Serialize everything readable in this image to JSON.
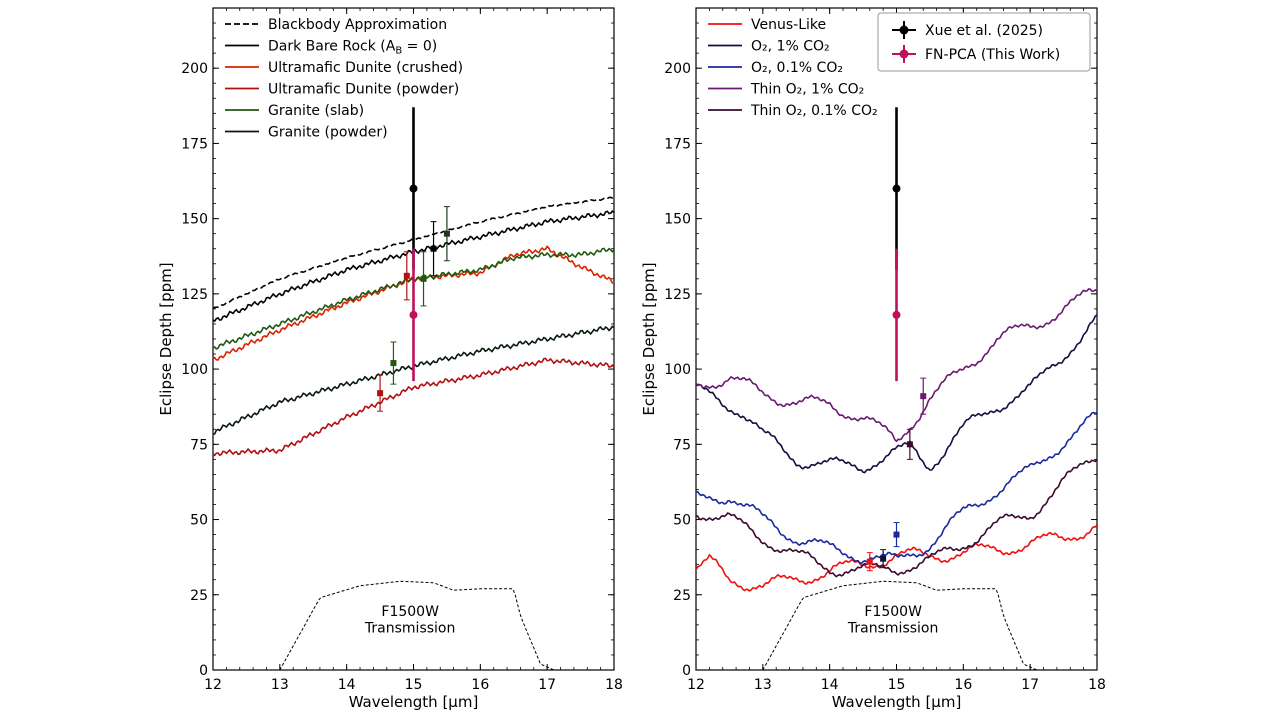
{
  "colors": {
    "black": "#000000",
    "red": "#ee1111",
    "darkred": "#b01010",
    "orange_red": "#dd2200",
    "green": "#1f5a10",
    "navy": "#101040",
    "blue": "#1a2aa0",
    "purple_dark": "#3a0a30",
    "purple": "#6a1a70",
    "magenta": "#b8125a",
    "crimson": "#c0105a"
  },
  "chart_data": [
    {
      "type": "line",
      "panel": "left",
      "xlabel": "Wavelength [μm]",
      "ylabel": "Eclipse Depth [ppm]",
      "xlim": [
        12,
        18
      ],
      "ylim": [
        0,
        220
      ],
      "xticks": [
        "12",
        "13",
        "14",
        "15",
        "16",
        "17",
        "18"
      ],
      "yticks": [
        "0",
        "25",
        "50",
        "75",
        "100",
        "125",
        "150",
        "175",
        "200"
      ],
      "legend_position": "top-left",
      "series": [
        {
          "name": "Blackbody Approximation",
          "color": "#000000",
          "dash": true,
          "x": [
            12,
            13,
            14,
            15,
            16,
            17,
            18
          ],
          "values": [
            120,
            130,
            137,
            143,
            149,
            154,
            157
          ]
        },
        {
          "name": "Dark Bare Rock (A_B = 0)",
          "color": "#000000",
          "dash": false,
          "x": [
            12,
            13,
            14,
            15,
            16,
            17,
            18
          ],
          "values": [
            116,
            125,
            133,
            139,
            144,
            149,
            152
          ]
        },
        {
          "name": "Ultramafic Dunite (crushed)",
          "color": "#dd2200",
          "dash": false,
          "x": [
            12,
            13,
            14,
            15,
            16,
            16.5,
            17,
            17.5,
            18
          ],
          "values": [
            103,
            113,
            122,
            130,
            132,
            138,
            140,
            134,
            129
          ]
        },
        {
          "name": "Ultramafic Dunite (powder)",
          "color": "#b01010",
          "dash": false,
          "x": [
            12,
            13,
            14,
            15,
            16,
            17,
            18
          ],
          "values": [
            72,
            73,
            84,
            94,
            98,
            103,
            101
          ]
        },
        {
          "name": "Granite (slab)",
          "color": "#1f5a10",
          "dash": false,
          "x": [
            12,
            13,
            14,
            15,
            16,
            16.5,
            17,
            17.5,
            18
          ],
          "values": [
            107,
            115,
            123,
            130,
            133,
            137,
            138,
            138,
            140
          ]
        },
        {
          "name": "Granite (powder)",
          "color": "#0a1a0a",
          "dash": false,
          "x": [
            12,
            13,
            14,
            15,
            16,
            17,
            18
          ],
          "values": [
            79,
            89,
            95,
            101,
            106,
            110,
            114
          ]
        }
      ],
      "points": [
        {
          "color": "#000000",
          "marker": "circle",
          "x": 15.0,
          "y": 160,
          "err": 27
        },
        {
          "color": "#c0105a",
          "marker": "circle",
          "x": 15.0,
          "y": 118,
          "err": 22
        },
        {
          "color": "#000000",
          "marker": "square",
          "x": 15.3,
          "y": 140,
          "err": 9
        },
        {
          "color": "#1a3a1a",
          "marker": "square",
          "x": 15.5,
          "y": 145,
          "err": 9
        },
        {
          "color": "#b01010",
          "marker": "square",
          "x": 14.9,
          "y": 131,
          "err": 8
        },
        {
          "color": "#1f5a10",
          "marker": "square",
          "x": 15.15,
          "y": 130,
          "err": 9
        },
        {
          "color": "#1f5a10",
          "marker": "square",
          "x": 14.7,
          "y": 102,
          "err": 7
        },
        {
          "color": "#b01010",
          "marker": "square",
          "x": 14.5,
          "y": 92,
          "err": 6
        }
      ],
      "filter": {
        "label_line1": "F1500W",
        "label_line2": "Transmission",
        "x": [
          13.0,
          13.3,
          13.6,
          14.2,
          14.8,
          15.3,
          15.6,
          16.0,
          16.5,
          16.6,
          16.9,
          17.1
        ],
        "values": [
          0,
          12,
          24,
          28,
          29.5,
          29,
          26.5,
          27,
          27,
          18,
          2,
          0
        ]
      }
    },
    {
      "type": "line",
      "panel": "right",
      "xlabel": "Wavelength [μm]",
      "ylabel": "Eclipse Depth [ppm]",
      "xlim": [
        12,
        18
      ],
      "ylim": [
        0,
        220
      ],
      "xticks": [
        "12",
        "13",
        "14",
        "15",
        "16",
        "17",
        "18"
      ],
      "yticks": [
        "0",
        "25",
        "50",
        "75",
        "100",
        "125",
        "150",
        "175",
        "200"
      ],
      "legend_position": "top-left",
      "series": [
        {
          "name": "Venus-Like",
          "color": "#ee1111",
          "dash": false,
          "x": [
            12,
            12.2,
            12.5,
            13,
            13.5,
            14,
            14.5,
            15,
            15.5,
            16,
            16.5,
            17,
            17.5,
            18
          ],
          "values": [
            33,
            36,
            30,
            28,
            30,
            33,
            35,
            38,
            38,
            39,
            40,
            42,
            44,
            48
          ]
        },
        {
          "name": "O₂, 1% CO₂",
          "color": "#101040",
          "dash": false,
          "x": [
            12,
            12.3,
            12.7,
            13,
            13.5,
            14,
            14.5,
            15,
            15.2,
            15.5,
            16,
            16.5,
            17,
            17.5,
            18
          ],
          "values": [
            93,
            90,
            86,
            78,
            70,
            68,
            68,
            72,
            74,
            68,
            80,
            88,
            93,
            105,
            116
          ]
        },
        {
          "name": "O₂, 0.1% CO₂",
          "color": "#1a2aa0",
          "dash": false,
          "x": [
            12,
            12.5,
            13,
            13.5,
            14,
            14.5,
            15,
            15.5,
            16,
            16.5,
            17,
            17.5,
            18
          ],
          "values": [
            57,
            58,
            50,
            44,
            40,
            38,
            36,
            42,
            52,
            60,
            66,
            76,
            84
          ]
        },
        {
          "name": "Thin O₂, 1% CO₂",
          "color": "#6a1a70",
          "dash": false,
          "x": [
            12,
            12.5,
            13,
            13.5,
            14,
            14.5,
            15,
            15.5,
            16,
            16.5,
            17,
            17.5,
            18
          ],
          "values": [
            95,
            97,
            92,
            89,
            88,
            84,
            76,
            90,
            100,
            110,
            114,
            120,
            126
          ]
        },
        {
          "name": "Thin O₂, 0.1% CO₂",
          "color": "#3a0a30",
          "dash": false,
          "x": [
            12,
            12.5,
            13,
            13.5,
            14,
            14.5,
            15,
            15.5,
            16,
            16.5,
            17,
            17.5,
            18
          ],
          "values": [
            53,
            50,
            44,
            38,
            34,
            33,
            34,
            36,
            42,
            48,
            52,
            62,
            72
          ]
        }
      ],
      "points": [
        {
          "color": "#000000",
          "marker": "circle",
          "x": 15.0,
          "y": 160,
          "err": 27
        },
        {
          "color": "#c0105a",
          "marker": "circle",
          "x": 15.0,
          "y": 118,
          "err": 22
        },
        {
          "color": "#6a1a70",
          "marker": "square",
          "x": 15.4,
          "y": 91,
          "err": 6
        },
        {
          "color": "#3a0a30",
          "marker": "square",
          "x": 15.2,
          "y": 75,
          "err": 5
        },
        {
          "color": "#1a2aa0",
          "marker": "square",
          "x": 15.0,
          "y": 45,
          "err": 4
        },
        {
          "color": "#101040",
          "marker": "square",
          "x": 14.8,
          "y": 37,
          "err": 3
        },
        {
          "color": "#ee1111",
          "marker": "square",
          "x": 14.6,
          "y": 36,
          "err": 3
        }
      ],
      "filter": {
        "label_line1": "F1500W",
        "label_line2": "Transmission",
        "x": [
          13.0,
          13.3,
          13.6,
          14.2,
          14.8,
          15.3,
          15.6,
          16.0,
          16.5,
          16.6,
          16.9,
          17.1
        ],
        "values": [
          0,
          12,
          24,
          28,
          29.5,
          29,
          26.5,
          27,
          27,
          18,
          2,
          0
        ]
      }
    }
  ],
  "legend_datasets": {
    "entries": [
      {
        "label": "Xue et al. (2025)",
        "color": "#000000"
      },
      {
        "label": "FN-PCA (This Work)",
        "color": "#c0105a"
      }
    ]
  },
  "legend_left": {
    "entries": [
      {
        "label": "Blackbody Approximation",
        "color": "#000000",
        "dash": true
      },
      {
        "label": "Dark Bare Rock (A",
        "sub": "B",
        "tail": " = 0)",
        "color": "#000000",
        "dash": false
      },
      {
        "label": "Ultramafic Dunite (crushed)",
        "color": "#dd2200",
        "dash": false
      },
      {
        "label": "Ultramafic Dunite (powder)",
        "color": "#b01010",
        "dash": false
      },
      {
        "label": "Granite (slab)",
        "color": "#1f5a10",
        "dash": false
      },
      {
        "label": "Granite (powder)",
        "color": "#0a1a0a",
        "dash": false
      }
    ]
  },
  "legend_right": {
    "entries": [
      {
        "label": "Venus-Like",
        "color": "#ee1111"
      },
      {
        "label": "O₂, 1% CO₂",
        "color": "#101040"
      },
      {
        "label": "O₂, 0.1% CO₂",
        "color": "#1a2aa0"
      },
      {
        "label": "Thin O₂, 1% CO₂",
        "color": "#6a1a70"
      },
      {
        "label": "Thin O₂, 0.1% CO₂",
        "color": "#3a0a30"
      }
    ]
  }
}
